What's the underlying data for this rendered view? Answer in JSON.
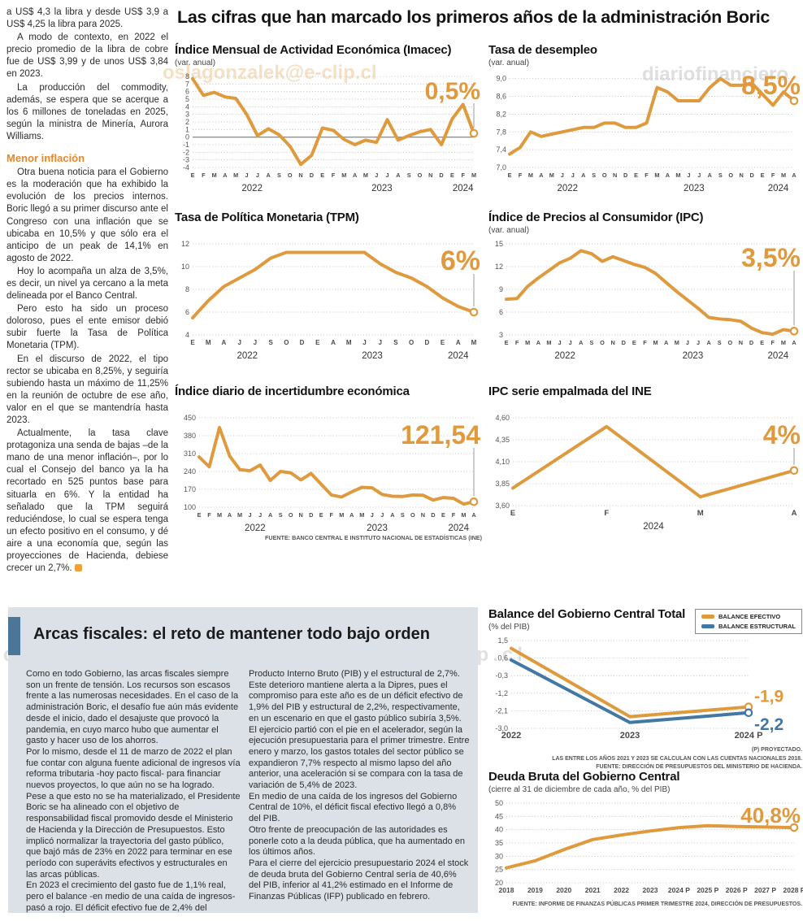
{
  "headline": "Las cifras que han marcado los primeros años de la administración Boric",
  "watermarks": {
    "top_left": "oslagonzalek@e-clip.cl",
    "top_right": "diariofinanciero",
    "middle": "diariofinanciero.#slagonzalek@e-clip.cl"
  },
  "colors": {
    "orange": "#DF9A3E",
    "blue": "#4377A4",
    "accent_heading": "#E8872B",
    "panel_bg": "#dce1e8",
    "panel_bar": "#4C7698"
  },
  "left_column": {
    "p1": "a US$ 4,3 la libra y desde US$ 3,9 a US$ 4,25 la libra para 2025.",
    "p2": "A modo de contexto, en 2022 el precio promedio de la libra de cobre fue de US$ 3,99 y de unos US$ 3,84 en 2023.",
    "p3": "La producción del commodity, además, se espera que se acerque a los 6 millones de toneladas en 2025, según la ministra de Minería, Aurora Williams.",
    "heading": "Menor inflación",
    "p4": "Otra buena noticia para el Gobierno es la moderación que ha exhibido la evolución de los precios internos. Boric llegó a su primer discurso ante el Congreso con una inflación que se ubicaba en 10,5% y que sólo era el anticipo de un peak de 14,1% en agosto de 2022.",
    "p5": "Hoy lo acompaña un alza de 3,5%, es decir, un nivel ya cercano a la meta delineada por el Banco Central.",
    "p6": "Pero esto ha sido un proceso doloroso, pues el ente emisor debió subir fuerte la Tasa de Política Monetaria (TPM).",
    "p7": "En el discurso de 2022, el tipo rector se ubicaba en 8,25%, y seguiría subiendo hasta un máximo de 11,25% en la reunión de octubre de ese año, valor en el que se mantendría hasta 2023.",
    "p8": "Actualmente, la tasa clave protagoniza una senda de bajas –de la mano de una menor inflación–, por lo cual el Consejo del banco ya la ha recortado en 525 puntos base para situarla en 6%. Y la entidad ha señalado que la TPM seguirá reduciéndose, lo cual se espera tenga un efecto positivo en el consumo, y dé aire a una economía que, según las proyecciones de Hacienda, debiese crecer un 2,7%."
  },
  "fiscal_section": {
    "title": "Arcas fiscales: el reto de mantener todo bajo orden",
    "col1": {
      "p1": "Como en todo Gobierno, las arcas fiscales siempre son un frente de tensión. Los recursos son escasos frente a las numerosas necesidades. En el caso de la administración Boric, el desafío fue aún más evidente desde el inicio, dado el desajuste que provocó la pandemia, en cuyo marco hubo que aumentar el gasto y hacer uso de los ahorros.",
      "p2": "Por lo mismo, desde el 11 de marzo de 2022 el plan fue contar con alguna fuente adicional de ingresos vía reforma tributaria -hoy pacto fiscal- para financiar nuevos proyectos, lo que aún no se ha logrado.",
      "p3": "Pese a que esto no se ha materializado, el Presidente Boric se ha alineado con el objetivo de responsabilidad fiscal promovido desde el Ministerio de Hacienda y la Dirección de Presupuestos. Esto implicó normalizar la trayectoria del gasto público, que bajó más de 23% en 2022 para terminar en ese período con superávits efectivos y estructurales en las arcas públicas.",
      "p4": "En 2023 el crecimiento del gasto fue de 1,1% real, pero el balance -en medio de una caída de ingresos-  pasó a rojo. El déficit efectivo fue de 2,4% del"
    },
    "col2": {
      "p1": "Producto Interno Bruto (PIB) y el estructural de 2,7%. Este deterioro mantiene alerta a la Dipres, pues el compromiso para este año es de un déficit efectivo de 1,9% del PIB y estructural de 2,2%, respectivamente, en un escenario en que el gasto público subiría 3,5%.",
      "p2": "El ejercicio partió con el pie en el acelerador, según la ejecución presupuestaria para el primer trimestre. Entre enero y marzo, los gastos totales del sector público se expandieron 7,7% respecto al mismo lapso del año anterior, una aceleración si se compara con la tasa de variación de 5,4% de 2023.",
      "p3": "En medio de una caída de los ingresos del Gobierno Central de 10%, el déficit fiscal efectivo llegó a 0,8% del PIB.",
      "p4": "Otro frente de preocupación de las autoridades es ponerle coto a la deuda pública, que ha aumentado en los últimos años.",
      "p5": "Para el cierre del ejercicio presupuestario 2024 el stock de deuda bruta del Gobierno Central sería de 40,6% del PIB, inferior al 41,2% estimado en el Informe de Finanzas Públicas (IFP) publicado en febrero."
    }
  },
  "chart_data": [
    {
      "id": "imacec",
      "type": "line",
      "title": "Índice Mensual de Actividad Económica (Imacec)",
      "subtitle": "(var. anual)",
      "value_label": "0,5%",
      "label_size": 30,
      "label_y": 36,
      "ylim": [
        -4,
        8
      ],
      "zero_line": true,
      "ml": 22,
      "y_ticks": [
        {
          "v": 8,
          "label": "8"
        },
        {
          "v": 7,
          "label": "7"
        },
        {
          "v": 6,
          "label": "6"
        },
        {
          "v": 5,
          "label": "5"
        },
        {
          "v": 4,
          "label": "4"
        },
        {
          "v": 3,
          "label": "3"
        },
        {
          "v": 2,
          "label": "2"
        },
        {
          "v": 1,
          "label": "1"
        },
        {
          "v": 0,
          "label": "0"
        },
        {
          "v": -1,
          "label": "-1"
        },
        {
          "v": -2,
          "label": "-2"
        },
        {
          "v": -3,
          "label": "-3"
        },
        {
          "v": -4,
          "label": "-4"
        }
      ],
      "x_labels": [
        "E",
        "F",
        "M",
        "A",
        "M",
        "J",
        "J",
        "A",
        "S",
        "O",
        "N",
        "D",
        "E",
        "F",
        "M",
        "A",
        "M",
        "J",
        "J",
        "A",
        "S",
        "O",
        "N",
        "D",
        "E",
        "F",
        "M"
      ],
      "years": [
        {
          "label": "2022",
          "start": 0,
          "end": 11
        },
        {
          "label": "2023",
          "start": 12,
          "end": 23
        },
        {
          "label": "2024",
          "start": 24,
          "end": 26
        }
      ],
      "series": [
        {
          "name": "imacec",
          "color": "#DF9A3E",
          "values": [
            7.7,
            5.5,
            5.9,
            5.3,
            5.1,
            3.0,
            0.2,
            1.1,
            0.3,
            -1.2,
            -3.6,
            -2.4,
            1.2,
            0.9,
            -0.3,
            -1.0,
            -0.4,
            -0.7,
            2.3,
            -0.4,
            0.2,
            0.7,
            1.0,
            -1.0,
            2.4,
            4.3,
            0.5
          ]
        }
      ]
    },
    {
      "id": "desempleo",
      "type": "line",
      "title": "Tasa de desempleo",
      "subtitle": "(var. anual)",
      "value_label": "8,5%",
      "label_size": 32,
      "label_y": 30,
      "ylim": [
        7.0,
        9.05
      ],
      "ml": 26,
      "y_ticks": [
        {
          "v": 9.0,
          "label": "9,0"
        },
        {
          "v": 8.6,
          "label": "8,6"
        },
        {
          "v": 8.2,
          "label": "8,2"
        },
        {
          "v": 7.8,
          "label": "7,8"
        },
        {
          "v": 7.4,
          "label": "7,4"
        },
        {
          "v": 7.0,
          "label": "7,0"
        }
      ],
      "x_labels": [
        "E",
        "F",
        "M",
        "A",
        "M",
        "J",
        "J",
        "A",
        "S",
        "O",
        "N",
        "D",
        "E",
        "F",
        "M",
        "A",
        "M",
        "J",
        "J",
        "A",
        "S",
        "O",
        "N",
        "D",
        "E",
        "F",
        "M",
        "A"
      ],
      "years": [
        {
          "label": "2022",
          "start": 0,
          "end": 11
        },
        {
          "label": "2023",
          "start": 12,
          "end": 23
        },
        {
          "label": "2024",
          "start": 24,
          "end": 27
        }
      ],
      "series": [
        {
          "name": "desempleo",
          "color": "#DF9A3E",
          "values": [
            7.3,
            7.45,
            7.8,
            7.7,
            7.75,
            7.8,
            7.85,
            7.9,
            7.9,
            8.0,
            8.0,
            7.9,
            7.9,
            8.0,
            8.8,
            8.7,
            8.5,
            8.5,
            8.5,
            8.8,
            9.0,
            8.85,
            8.85,
            8.9,
            8.65,
            8.4,
            8.7,
            8.5
          ]
        }
      ]
    },
    {
      "id": "tpm",
      "type": "line",
      "title": "Tasa de Política Monetaria (TPM)",
      "value_label": "6%",
      "label_size": 34,
      "label_y": 40,
      "x_font": 8,
      "ylim": [
        4,
        12
      ],
      "ml": 22,
      "y_ticks": [
        {
          "v": 12,
          "label": "12"
        },
        {
          "v": 10,
          "label": "10"
        },
        {
          "v": 8,
          "label": "8"
        },
        {
          "v": 6,
          "label": "6"
        },
        {
          "v": 4,
          "label": "4"
        }
      ],
      "x_labels": [
        "E",
        "M",
        "A",
        "J",
        "J",
        "S",
        "O",
        "D",
        "E",
        "A",
        "M",
        "J",
        "J",
        "S",
        "O",
        "D",
        "E",
        "A",
        "M"
      ],
      "years": [
        {
          "label": "2022",
          "start": 0,
          "end": 7
        },
        {
          "label": "2023",
          "start": 8,
          "end": 15
        },
        {
          "label": "2024",
          "start": 16,
          "end": 18
        }
      ],
      "series": [
        {
          "name": "tpm",
          "color": "#DF9A3E",
          "values": [
            5.5,
            7.0,
            8.25,
            9.0,
            9.75,
            10.75,
            11.25,
            11.25,
            11.25,
            11.25,
            11.25,
            11.25,
            10.25,
            9.5,
            9.0,
            8.25,
            7.25,
            6.5,
            6.0
          ]
        }
      ]
    },
    {
      "id": "ipc",
      "type": "line",
      "title": "Índice de Precios al Consumidor (IPC)",
      "subtitle": "(var. anual)",
      "value_label": "3,5%",
      "label_size": 32,
      "label_y": 36,
      "ylim": [
        3,
        15
      ],
      "ml": 22,
      "y_ticks": [
        {
          "v": 15,
          "label": "15"
        },
        {
          "v": 12,
          "label": "12"
        },
        {
          "v": 9,
          "label": "9"
        },
        {
          "v": 6,
          "label": "6"
        },
        {
          "v": 3,
          "label": "3"
        }
      ],
      "x_labels": [
        "E",
        "F",
        "M",
        "A",
        "M",
        "J",
        "J",
        "A",
        "S",
        "O",
        "N",
        "D",
        "E",
        "F",
        "M",
        "A",
        "M",
        "J",
        "J",
        "A",
        "S",
        "O",
        "N",
        "D",
        "E",
        "F",
        "M",
        "A"
      ],
      "years": [
        {
          "label": "2022",
          "start": 0,
          "end": 11
        },
        {
          "label": "2023",
          "start": 12,
          "end": 23
        },
        {
          "label": "2024",
          "start": 24,
          "end": 27
        }
      ],
      "series": [
        {
          "name": "ipc",
          "color": "#DF9A3E",
          "values": [
            7.7,
            7.8,
            9.4,
            10.5,
            11.5,
            12.5,
            13.1,
            14.1,
            13.7,
            12.7,
            13.3,
            12.8,
            12.3,
            11.9,
            11.1,
            9.9,
            8.7,
            7.6,
            6.5,
            5.3,
            5.1,
            5.0,
            4.8,
            3.9,
            3.3,
            3.1,
            3.7,
            3.5
          ]
        }
      ]
    },
    {
      "id": "incertidumbre",
      "type": "line",
      "title": "Índice diario de incertidumbre económica",
      "value_label": "121,54",
      "label_size": 32,
      "label_y": 40,
      "ylim": [
        100,
        450
      ],
      "ml": 30,
      "y_ticks": [
        {
          "v": 450,
          "label": "450"
        },
        {
          "v": 380,
          "label": "380"
        },
        {
          "v": 310,
          "label": "310"
        },
        {
          "v": 240,
          "label": "240"
        },
        {
          "v": 170,
          "label": "170"
        },
        {
          "v": 100,
          "label": "100"
        }
      ],
      "x_labels": [
        "E",
        "F",
        "M",
        "A",
        "M",
        "J",
        "J",
        "A",
        "S",
        "O",
        "N",
        "D",
        "E",
        "F",
        "M",
        "A",
        "M",
        "J",
        "J",
        "A",
        "S",
        "O",
        "N",
        "D",
        "E",
        "F",
        "M",
        "A"
      ],
      "years": [
        {
          "label": "2022",
          "start": 0,
          "end": 11
        },
        {
          "label": "2023",
          "start": 12,
          "end": 23
        },
        {
          "label": "2024",
          "start": 24,
          "end": 27
        }
      ],
      "series": [
        {
          "name": "incertidumbre",
          "color": "#DF9A3E",
          "values": [
            297,
            258,
            412,
            300,
            247,
            243,
            265,
            205,
            240,
            235,
            207,
            232,
            190,
            148,
            140,
            160,
            178,
            176,
            150,
            143,
            142,
            148,
            147,
            128,
            138,
            135,
            112,
            121.54
          ]
        }
      ],
      "source": "FUENTE: BANCO CENTRAL E INSTITUTO NACIONAL DE ESTADÍSTICAS (INE)"
    },
    {
      "id": "ipc_empalmada",
      "type": "line",
      "title": "IPC serie empalmada del INE",
      "value_label": "4%",
      "label_size": 32,
      "label_y": 40,
      "x_font": 9.5,
      "ylim": [
        3.6,
        4.6
      ],
      "ml": 30,
      "y_ticks": [
        {
          "v": 4.6,
          "label": "4,60"
        },
        {
          "v": 4.35,
          "label": "4,35"
        },
        {
          "v": 4.1,
          "label": "4,10"
        },
        {
          "v": 3.85,
          "label": "3,85"
        },
        {
          "v": 3.6,
          "label": "3,60"
        }
      ],
      "x_labels": [
        "E",
        "F",
        "M",
        "A"
      ],
      "years": [
        {
          "label": "2024",
          "start": 0,
          "end": 3
        }
      ],
      "series": [
        {
          "name": "ipc_empalmada",
          "color": "#DF9A3E",
          "values": [
            3.8,
            4.5,
            3.7,
            4.0
          ]
        }
      ]
    },
    {
      "id": "balance",
      "type": "line",
      "title": "Balance del Gobierno Central Total",
      "subtitle": "(% del PIB)",
      "ylim": [
        -3.0,
        1.5
      ],
      "ml": 28,
      "mr": 66,
      "mb": 22,
      "x_font": 11,
      "connector": false,
      "y_ticks": [
        {
          "v": 1.5,
          "label": "1,5"
        },
        {
          "v": 0.6,
          "label": "0,6"
        },
        {
          "v": -0.3,
          "label": "-0,3"
        },
        {
          "v": -1.2,
          "label": "-1,2"
        },
        {
          "v": -2.1,
          "label": "-2,1"
        },
        {
          "v": -3.0,
          "label": "-3,0"
        }
      ],
      "x_labels": [
        "2022",
        "2023",
        "2024 P"
      ],
      "series": [
        {
          "name": "BALANCE EFECTIVO",
          "color": "#DF9A3E",
          "values": [
            1.1,
            -2.4,
            -1.9
          ],
          "end_label": {
            "text": "-1,9",
            "dy": -6
          }
        },
        {
          "name": "BALANCE ESTRUCTURAL",
          "color": "#4377A4",
          "values": [
            0.5,
            -2.7,
            -2.2
          ],
          "end_label": {
            "text": "-2,2",
            "dy": 21
          }
        }
      ],
      "footnotes": [
        "(P) PROYECTADO.",
        "LAS ENTRE LOS AÑOS 2021 Y 2023 SE CALCULAN  CON LAS CUENTAS NACIONALES 2018.",
        "FUENTE: DIRECCIÓN DE PRESUPUESTOS DEL MINISTERIO DE HACIENDA."
      ]
    },
    {
      "id": "deuda",
      "type": "line",
      "title": "Deuda Bruta del Gobierno Central",
      "subtitle": "(cierre al 31 de diciembre de cada año, % del PIB)",
      "value_label": "40,8%",
      "label_size": 26,
      "label_y": 32,
      "connector": false,
      "ylim": [
        20,
        50
      ],
      "ml": 22,
      "mb": 22,
      "x_font": 8.5,
      "y_ticks": [
        {
          "v": 50,
          "label": "50"
        },
        {
          "v": 45,
          "label": "45"
        },
        {
          "v": 40,
          "label": "40"
        },
        {
          "v": 35,
          "label": "35"
        },
        {
          "v": 30,
          "label": "30"
        },
        {
          "v": 25,
          "label": "25"
        },
        {
          "v": 20,
          "label": "20"
        }
      ],
      "x_labels": [
        "2018",
        "2019",
        "2020",
        "2021",
        "2022",
        "2023",
        "2024 P",
        "2025 P",
        "2026 P",
        "2027 P",
        "2028 P"
      ],
      "series": [
        {
          "name": "deuda",
          "color": "#DF9A3E",
          "values": [
            25.6,
            28.3,
            32.5,
            36.3,
            38.0,
            39.5,
            40.8,
            41.5,
            41.2,
            41.0,
            40.8
          ]
        }
      ],
      "footnote": "FUENTE: INFORME DE FINANZAS PÚBLICAS PRIMER TRIMESTRE 2024, DIRECCIÓN DE PRESUPUESTOS."
    }
  ]
}
